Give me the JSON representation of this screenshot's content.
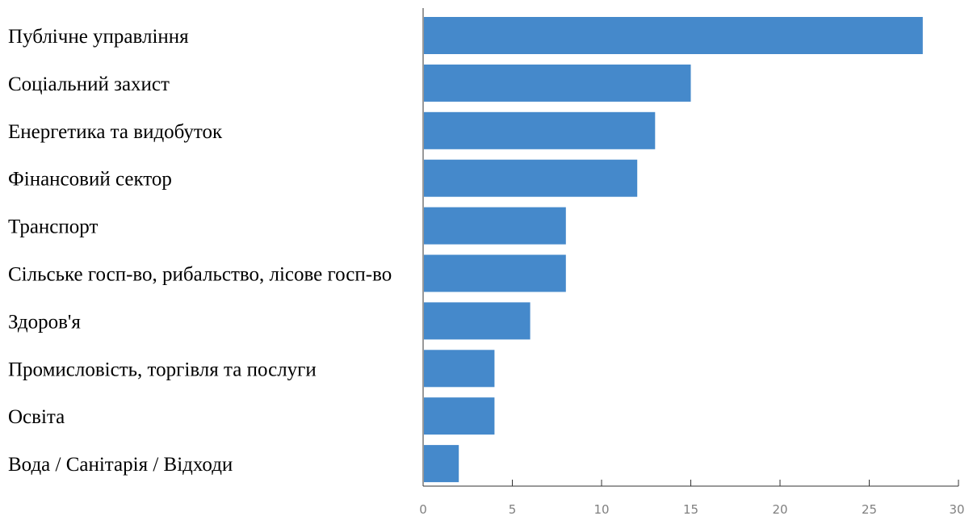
{
  "chart_data": {
    "type": "bar",
    "orientation": "horizontal",
    "title": "",
    "xlabel": "",
    "ylabel": "",
    "categories": [
      "Публічне управління",
      "Соціальний захист",
      "Енергетика та видобуток",
      "Фінансовий сектор",
      "Транспорт",
      "Сільське госп-во, рибальство, лісове госп-во",
      "Здоров'я",
      "Промисловість, торгівля та послуги",
      "Освіта",
      "Вода / Санітарія / Відходи"
    ],
    "values": [
      28,
      15,
      13,
      12,
      8,
      8,
      6,
      4,
      4,
      2
    ],
    "xlim": [
      0,
      30
    ],
    "xticks": [
      "0",
      "5",
      "10",
      "15",
      "20",
      "25",
      "30"
    ],
    "bar_color": "#4589CB",
    "grid": false,
    "legend": "none"
  }
}
